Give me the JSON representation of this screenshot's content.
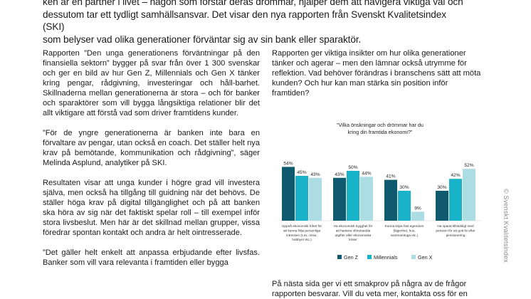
{
  "intro": {
    "line1": "ken är en partner i livet – någon som förstår deras drömmar, hjälper dem att navigera viktiga val och",
    "line2": "dessutom tar ett tydligt samhällsansvar. Det visar den nya rapporten från Svenskt Kvalitetsindex (SKI)",
    "line3": "som belyser vad olika generationer förväntar sig av sin bank eller sparaktör."
  },
  "left_column": {
    "p1": "Rapporten ”Den unga generationens förväntningar på den finansiella sektorn” bygger på svar från över 1 300 svenskar och ger en bild av hur Gen Z, Millennials och Gen X tänker kring pengar, rådgivning, investeringar och håll-barhet. Skillnaderna mellan generationerna är stora – och för banker och sparaktörer som vill bygga långsiktiga relationer blir det allt viktigare att förstå vad som driver framtidens kunder.",
    "p2": "”För de yngre generationerna är banken inte bara en förvaltare av pengar, utan också en coach. Det ställer helt nya krav på bemötande, kommunikation och rådgivning”, säger Melinda Asplund, analytiker på SKI.",
    "p3": "Resultaten visar att unga kunder i högre grad vill investera själva, men också ha tillgång till guidning när det behövs. De ställer höga krav på digital tillgänglighet och på att banken ska höra av sig när det faktiskt spelar roll – till exempel inför stora livsbeslut. Men här är det skillnad mellan grupper, vissa föredrar spontan kontakt och andra är helt ointresserade.",
    "p4": "”Det gäller helt enkelt att anpassa erbjudande efter livsfas. Banker som vill vara relevanta i framtiden eller bygga"
  },
  "right_column": {
    "p1": "Rapporten ger viktiga insikter om hur olika generationer tänker och agerar – men den lämnar också utrymme för reflektion. Vad behöver förändras i branschens sätt att möta kunden? Och hur kan man stärka sin position inför framtiden?",
    "p2": "På nästa sida ger vi ett smakprov på några av de frågor rapporten besvarar. Vill du veta mer, kontakta oss för en"
  },
  "side_text": "© Svenskt Kvalitetsindex",
  "chart_data": {
    "type": "bar",
    "title": "”Vilka önskningar och drömmar har du kring din framtida ekonomi?”",
    "categories": [
      "Uppnå ekonomisk frihet för att kunna följa personliga intressen (t.ex. resor, hobbyer etc.)",
      "Ha ekonomisk trygghet för att hantera oförutsedda utgifter eller ekonomiska kriser",
      "Kunna köpa fast egendom (lägenhet, hus, sommarstuga etc.)",
      "Ha sparat tillräckligt med pension för ett gott liv efter pensionering"
    ],
    "category_lines": [
      [
        "Uppnå ekonomisk frihet för",
        "att kunna följa personliga",
        "intressen (t.ex. resor,",
        "hobbyer etc.)"
      ],
      [
        "Ha ekonomisk trygghet för",
        "att hantera oförutsedda",
        "utgifter eller ekonomiska",
        "kriser"
      ],
      [
        "Kunna köpa fast egendom",
        "(lägenhet, hus,",
        "sommarstuga etc.)"
      ],
      [
        "Ha sparat tillräckligt med",
        "pension för ett gott liv efter",
        "pensionering"
      ]
    ],
    "series": [
      {
        "name": "Gen Z",
        "values": [
          54,
          43,
          41,
          30
        ],
        "color": "#0f5a6e"
      },
      {
        "name": "Millennials",
        "values": [
          45,
          50,
          30,
          42
        ],
        "color": "#19b3c9"
      },
      {
        "name": "Gen X",
        "values": [
          43,
          44,
          9,
          52
        ],
        "color": "#abdde3"
      }
    ],
    "value_suffix": "%",
    "ylim": [
      0,
      60
    ],
    "grid": false,
    "legend": "bottom-center"
  }
}
